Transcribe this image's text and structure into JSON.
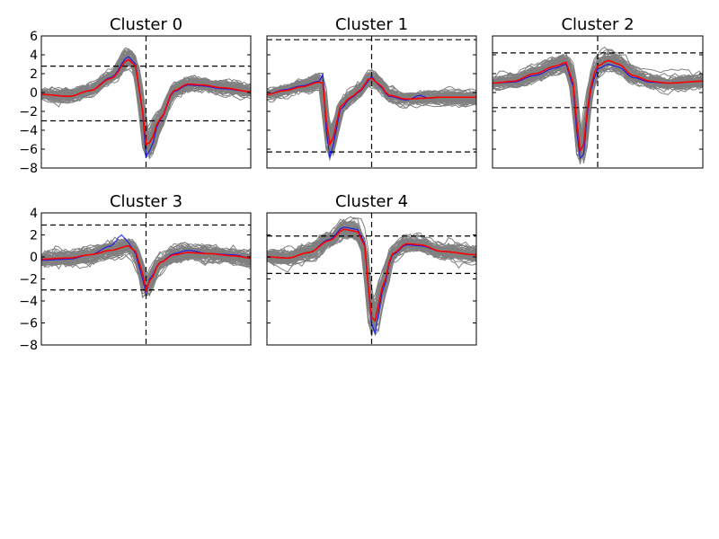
{
  "figure": {
    "background": "#ffffff",
    "trace_color": "#808080",
    "mean_color": "#ff0000",
    "median_color": "#0000ff",
    "marker_color": "#000000"
  },
  "chart_data": [
    {
      "type": "line",
      "title": "Cluster 0",
      "xlabel": "",
      "ylabel": "",
      "ylim": [
        -8,
        6
      ],
      "yticks": [
        -8,
        -6,
        -4,
        -2,
        0,
        2,
        4,
        6
      ],
      "ytick_labels": [
        "−8",
        "−6",
        "−4",
        "−2",
        "0",
        "2",
        "4",
        "6"
      ],
      "xticks_visible": false,
      "grid": false,
      "n_samples": 61,
      "threshold_upper": 2.8,
      "threshold_lower": -3.0,
      "marker_x": 30,
      "series": [
        {
          "role": "mean",
          "color": "#ff0000",
          "keyframes": [
            [
              0,
              -0.2
            ],
            [
              8,
              -0.4
            ],
            [
              14,
              0.2
            ],
            [
              20,
              1.5
            ],
            [
              25,
              3.5
            ],
            [
              27,
              2.8
            ],
            [
              29,
              -2
            ],
            [
              30,
              -5.5
            ],
            [
              31,
              -5.3
            ],
            [
              34,
              -2.8
            ],
            [
              38,
              0.2
            ],
            [
              42,
              0.9
            ],
            [
              46,
              0.8
            ],
            [
              52,
              0.5
            ],
            [
              60,
              0.1
            ]
          ]
        },
        {
          "role": "median",
          "color": "#0000ff",
          "keyframes": [
            [
              0,
              -0.2
            ],
            [
              8,
              -0.4
            ],
            [
              14,
              0.2
            ],
            [
              20,
              1.6
            ],
            [
              25,
              3.8
            ],
            [
              27,
              3.0
            ],
            [
              29,
              -2
            ],
            [
              30,
              -6.8
            ],
            [
              31,
              -6.2
            ],
            [
              34,
              -2.9
            ],
            [
              38,
              0.1
            ],
            [
              42,
              0.8
            ],
            [
              46,
              0.7
            ],
            [
              52,
              0.4
            ],
            [
              60,
              0.1
            ]
          ]
        }
      ]
    },
    {
      "type": "line",
      "title": "Cluster 1",
      "xlabel": "",
      "ylabel": "",
      "ylim": [
        -8,
        6
      ],
      "yticks": [
        -8,
        -6,
        -4,
        -2,
        0,
        2,
        4,
        6
      ],
      "ytick_labels": [],
      "xticks_visible": false,
      "grid": false,
      "n_samples": 61,
      "threshold_upper": 5.6,
      "threshold_lower": -6.3,
      "marker_x": 30,
      "series": [
        {
          "role": "mean",
          "color": "#ff0000",
          "keyframes": [
            [
              0,
              -0.2
            ],
            [
              5,
              0.2
            ],
            [
              10,
              0.6
            ],
            [
              15,
              1.1
            ],
            [
              16,
              1.0
            ],
            [
              17,
              -3
            ],
            [
              18,
              -5.5
            ],
            [
              19,
              -4.8
            ],
            [
              21,
              -1.5
            ],
            [
              24,
              -0.5
            ],
            [
              27,
              0.3
            ],
            [
              29,
              1.4
            ],
            [
              30,
              1.5
            ],
            [
              32,
              0.9
            ],
            [
              35,
              -0.3
            ],
            [
              40,
              -0.7
            ],
            [
              45,
              -0.6
            ],
            [
              50,
              -0.5
            ],
            [
              60,
              -0.5
            ]
          ]
        },
        {
          "role": "median",
          "color": "#0000ff",
          "keyframes": [
            [
              0,
              -0.2
            ],
            [
              5,
              0.3
            ],
            [
              10,
              0.7
            ],
            [
              15,
              1.2
            ],
            [
              16,
              1.9
            ],
            [
              17,
              -4
            ],
            [
              18,
              -6.9
            ],
            [
              19,
              -5.6
            ],
            [
              21,
              -1.8
            ],
            [
              24,
              -0.6
            ],
            [
              27,
              0.2
            ],
            [
              29,
              1.2
            ],
            [
              30,
              1.7
            ],
            [
              32,
              0.8
            ],
            [
              35,
              -0.4
            ],
            [
              40,
              -0.8
            ],
            [
              44,
              -0.3
            ],
            [
              46,
              -0.6
            ],
            [
              50,
              -0.5
            ],
            [
              60,
              -0.5
            ]
          ]
        }
      ]
    },
    {
      "type": "line",
      "title": "Cluster 2",
      "xlabel": "",
      "ylabel": "",
      "ylim": [
        -8,
        6
      ],
      "yticks": [
        -8,
        -6,
        -4,
        -2,
        0,
        2,
        4,
        6
      ],
      "ytick_labels": [],
      "xticks_visible": false,
      "grid": false,
      "n_samples": 61,
      "threshold_upper": 4.2,
      "threshold_lower": -1.6,
      "marker_x": 30,
      "series": [
        {
          "role": "mean",
          "color": "#ff0000",
          "keyframes": [
            [
              0,
              1.0
            ],
            [
              6,
              1.2
            ],
            [
              12,
              2.0
            ],
            [
              18,
              2.8
            ],
            [
              21,
              3.2
            ],
            [
              23,
              1.0
            ],
            [
              24,
              -3
            ],
            [
              25,
              -6.2
            ],
            [
              26,
              -5.5
            ],
            [
              27,
              -2
            ],
            [
              28,
              0.5
            ],
            [
              29,
              2.0
            ],
            [
              30,
              2.8
            ],
            [
              33,
              3.4
            ],
            [
              36,
              3.0
            ],
            [
              40,
              1.8
            ],
            [
              45,
              1.2
            ],
            [
              50,
              1.0
            ],
            [
              60,
              1.2
            ]
          ]
        },
        {
          "role": "median",
          "color": "#0000ff",
          "keyframes": [
            [
              0,
              1.0
            ],
            [
              6,
              1.1
            ],
            [
              12,
              1.8
            ],
            [
              18,
              2.6
            ],
            [
              21,
              3.0
            ],
            [
              23,
              0.6
            ],
            [
              24,
              -4
            ],
            [
              25,
              -7.0
            ],
            [
              26,
              -6.5
            ],
            [
              27,
              -2.5
            ],
            [
              28,
              0.2
            ],
            [
              29,
              1.5
            ],
            [
              30,
              2.5
            ],
            [
              33,
              3.0
            ],
            [
              36,
              2.7
            ],
            [
              40,
              1.6
            ],
            [
              45,
              1.1
            ],
            [
              50,
              1.0
            ],
            [
              60,
              1.2
            ]
          ]
        }
      ]
    },
    {
      "type": "line",
      "title": "Cluster 3",
      "xlabel": "",
      "ylabel": "",
      "ylim": [
        -8,
        4
      ],
      "yticks": [
        -8,
        -6,
        -4,
        -2,
        0,
        2,
        4
      ],
      "ytick_labels": [
        "−8",
        "−6",
        "−4",
        "−2",
        "0",
        "2",
        "4"
      ],
      "xticks_visible": false,
      "grid": false,
      "n_samples": 61,
      "threshold_upper": 2.9,
      "threshold_lower": -3.0,
      "marker_x": 30,
      "series": [
        {
          "role": "mean",
          "color": "#ff0000",
          "keyframes": [
            [
              0,
              -0.2
            ],
            [
              8,
              -0.1
            ],
            [
              14,
              0.2
            ],
            [
              20,
              0.6
            ],
            [
              25,
              1.0
            ],
            [
              27,
              0.5
            ],
            [
              29,
              -1.5
            ],
            [
              30,
              -3.0
            ],
            [
              31,
              -2.2
            ],
            [
              34,
              -0.5
            ],
            [
              38,
              0.2
            ],
            [
              42,
              0.4
            ],
            [
              48,
              0.3
            ],
            [
              55,
              0.1
            ],
            [
              60,
              -0.1
            ]
          ]
        },
        {
          "role": "median",
          "color": "#0000ff",
          "keyframes": [
            [
              0,
              -0.3
            ],
            [
              8,
              -0.2
            ],
            [
              14,
              0.2
            ],
            [
              20,
              1.0
            ],
            [
              23,
              2.0
            ],
            [
              25,
              1.3
            ],
            [
              27,
              0.3
            ],
            [
              29,
              -2
            ],
            [
              30,
              -3.3
            ],
            [
              31,
              -2.0
            ],
            [
              34,
              -0.5
            ],
            [
              38,
              0.3
            ],
            [
              42,
              0.6
            ],
            [
              48,
              0.3
            ],
            [
              55,
              0.2
            ],
            [
              60,
              -0.1
            ]
          ]
        }
      ]
    },
    {
      "type": "line",
      "title": "Cluster 4",
      "xlabel": "",
      "ylabel": "",
      "ylim": [
        -8,
        4
      ],
      "yticks": [
        -8,
        -6,
        -4,
        -2,
        0,
        2,
        4
      ],
      "ytick_labels": [],
      "xticks_visible": false,
      "grid": false,
      "n_samples": 61,
      "threshold_upper": 1.9,
      "threshold_lower": -1.5,
      "marker_x": 30,
      "series": [
        {
          "role": "mean",
          "color": "#ff0000",
          "keyframes": [
            [
              0,
              0.0
            ],
            [
              6,
              -0.1
            ],
            [
              12,
              0.4
            ],
            [
              18,
              1.5
            ],
            [
              22,
              2.5
            ],
            [
              26,
              2.3
            ],
            [
              28,
              1.0
            ],
            [
              29,
              -2.5
            ],
            [
              30,
              -5.5
            ],
            [
              31,
              -5.8
            ],
            [
              33,
              -2.8
            ],
            [
              36,
              0.3
            ],
            [
              40,
              1.2
            ],
            [
              44,
              1.1
            ],
            [
              50,
              0.5
            ],
            [
              60,
              0.2
            ]
          ]
        },
        {
          "role": "median",
          "color": "#0000ff",
          "keyframes": [
            [
              0,
              0.0
            ],
            [
              6,
              -0.1
            ],
            [
              12,
              0.4
            ],
            [
              18,
              1.6
            ],
            [
              22,
              2.7
            ],
            [
              26,
              2.5
            ],
            [
              28,
              1.2
            ],
            [
              29,
              -2.5
            ],
            [
              30,
              -6.0
            ],
            [
              31,
              -7.0
            ],
            [
              33,
              -3.2
            ],
            [
              36,
              0.2
            ],
            [
              40,
              1.1
            ],
            [
              44,
              1.0
            ],
            [
              50,
              0.5
            ],
            [
              60,
              0.2
            ]
          ]
        }
      ]
    }
  ]
}
